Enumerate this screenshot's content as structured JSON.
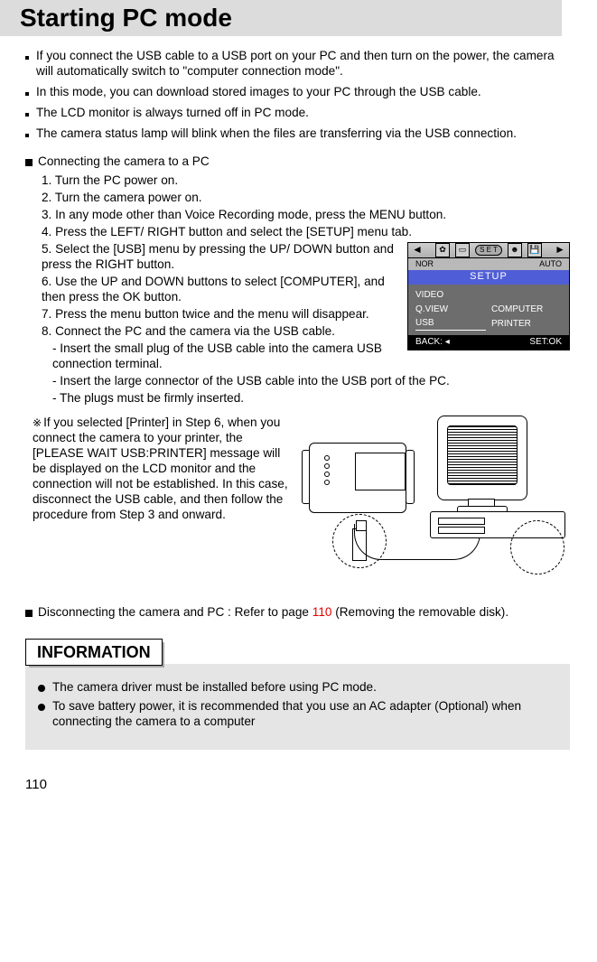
{
  "title": "Starting PC mode",
  "bullets": [
    "If you connect the USB cable to a USB port on your PC and then turn on the power, the camera will automatically switch to \"computer connection mode\".",
    "In this mode, you can download stored images to your PC through the USB cable.",
    "The LCD monitor is always turned off in PC mode.",
    "The camera status lamp will blink when the files are transferring via the USB connection."
  ],
  "section_connect_title": "Connecting the camera to a PC",
  "steps_a": [
    "1. Turn the PC power on.",
    "2. Turn the camera power on.",
    "3. In any mode other than Voice Recording mode, press the MENU button.",
    "4. Press the LEFT/ RIGHT button and select the [SETUP] menu tab."
  ],
  "steps_b": [
    "5. Select the [USB] menu by pressing the UP/ DOWN button and press the RIGHT button.",
    "6. Use the UP and DOWN buttons to select [COMPUTER], and then press the OK button.",
    "7. Press the menu button twice and the menu will disappear.",
    "8. Connect the PC and the camera via the USB cable."
  ],
  "substeps": [
    "- Insert the small plug of the USB cable into the camera USB connection terminal.",
    "- Insert the large connector of the USB cable into the USB port of the PC.",
    "- The plugs must be firmly inserted."
  ],
  "printer_note": "If you selected [Printer] in Step 6, when you connect the camera to your printer, the [PLEASE WAIT USB:PRINTER] message will be displayed on the LCD monitor and the connection will not be established. In this case, disconnect the USB cable, and then follow the procedure from Step 3 and onward.",
  "disconnect_pre": "Disconnecting the camera and PC : Refer to page ",
  "disconnect_page": "110",
  "disconnect_post": " (Removing the removable disk).",
  "info_heading": "INFORMATION",
  "info_items": [
    "The camera driver must be installed before using PC mode.",
    "To save battery power, it is recommended that you use an AC adapter (Optional) when connecting the camera to a computer"
  ],
  "page_number": "110",
  "menu": {
    "top_left": "NOR",
    "top_right": "AUTO",
    "set_pill": "S E T",
    "setup": "SETUP",
    "rows_left": [
      "VIDEO",
      "Q.VIEW",
      "USB"
    ],
    "rows_right": [
      "",
      "COMPUTER",
      "PRINTER"
    ],
    "foot_left": "BACK:",
    "foot_right": "SET:OK",
    "colors": {
      "setup_bg": "#4f5ed6",
      "body_bg": "#6d6d6d",
      "foot_bg": "#000000"
    }
  }
}
